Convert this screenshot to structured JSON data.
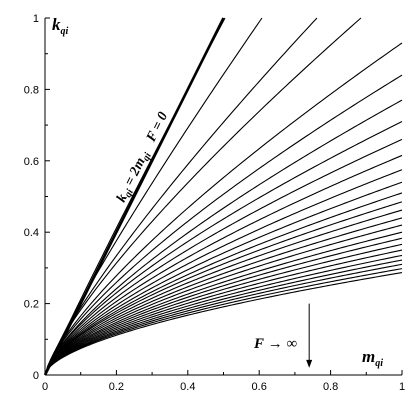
{
  "chart_data": {
    "type": "line",
    "xlabel": {
      "main": "m",
      "sub": "qi"
    },
    "ylabel": {
      "main": "k",
      "sub": "qi"
    },
    "xlim": [
      0,
      1
    ],
    "ylim": [
      0,
      1
    ],
    "x_ticks": [
      "0",
      "0.2",
      "0.4",
      "0.6",
      "0.8",
      "1"
    ],
    "y_ticks": [
      "0",
      "0.2",
      "0.4",
      "0.6",
      "0.8",
      "1"
    ],
    "grid": false,
    "limit_line": {
      "label_k": "k",
      "label_k_sub": "qi",
      "label_eq": " = 2",
      "label_m": "m",
      "label_m_sub": "qi",
      "label_F": "F = 0",
      "slope": 2
    },
    "annotation": {
      "label_F": "F",
      "label_arrow": " → ∞",
      "arrow_x": 0.74,
      "arrow_y_from": 0.2,
      "arrow_y_to": 0.02
    },
    "family": {
      "description_curve_form": "k = a * m^p",
      "curves": [
        {
          "a": 1.93,
          "p": 0.96
        },
        {
          "a": 1.55,
          "p": 0.88
        },
        {
          "a": 1.25,
          "p": 0.82
        },
        {
          "a": 1.1,
          "p": 0.78
        },
        {
          "a": 0.93,
          "p": 0.75
        },
        {
          "a": 0.84,
          "p": 0.73
        },
        {
          "a": 0.77,
          "p": 0.72
        },
        {
          "a": 0.71,
          "p": 0.7
        },
        {
          "a": 0.66,
          "p": 0.69
        },
        {
          "a": 0.615,
          "p": 0.68
        },
        {
          "a": 0.575,
          "p": 0.67
        },
        {
          "a": 0.54,
          "p": 0.66
        },
        {
          "a": 0.51,
          "p": 0.65
        },
        {
          "a": 0.485,
          "p": 0.64
        },
        {
          "a": 0.462,
          "p": 0.635
        },
        {
          "a": 0.44,
          "p": 0.63
        },
        {
          "a": 0.42,
          "p": 0.625
        },
        {
          "a": 0.4,
          "p": 0.62
        },
        {
          "a": 0.383,
          "p": 0.615
        },
        {
          "a": 0.366,
          "p": 0.61
        },
        {
          "a": 0.35,
          "p": 0.605
        },
        {
          "a": 0.335,
          "p": 0.6
        },
        {
          "a": 0.322,
          "p": 0.598
        },
        {
          "a": 0.31,
          "p": 0.595
        },
        {
          "a": 0.298,
          "p": 0.59
        },
        {
          "a": 0.287,
          "p": 0.588
        }
      ]
    }
  }
}
